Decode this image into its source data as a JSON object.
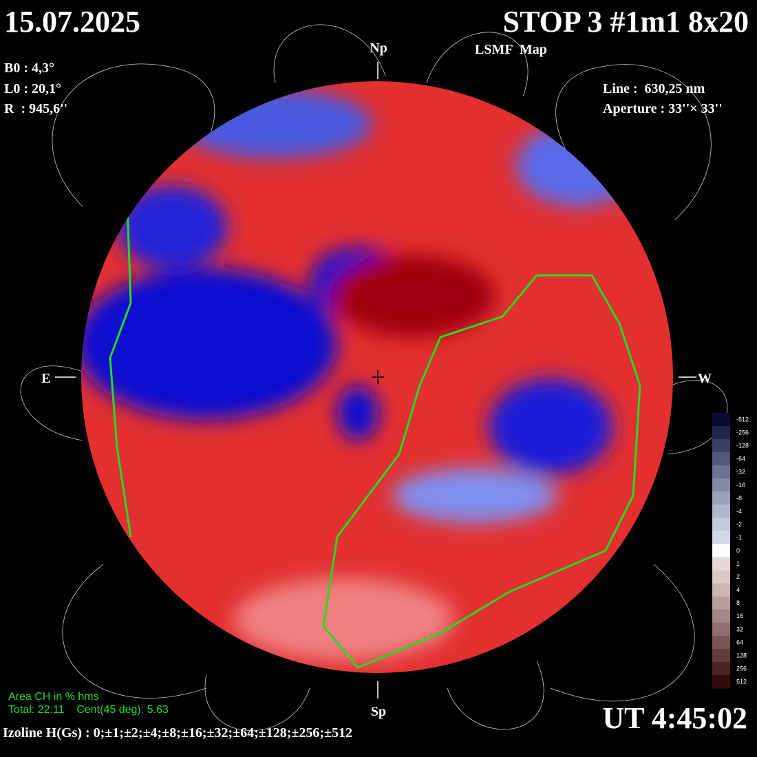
{
  "header": {
    "date": "15.07.2025",
    "title": "STOP 3 #1m1 8x20",
    "subtitle": "LSMF  Map"
  },
  "parameters": {
    "b0": "B0 : 4,3°",
    "l0": "L0 : 20,1°",
    "radius": "R  : 945,6''",
    "line": "Line :  630,25 nm",
    "aperture": "Aperture : 33''× 33''"
  },
  "directions": {
    "north": "Np",
    "south": "Sp",
    "east": "E",
    "west": "W"
  },
  "colorbar": {
    "labels": [
      -512,
      -256,
      -128,
      -64,
      -32,
      -16,
      -8,
      -4,
      -2,
      -1,
      0,
      1,
      2,
      4,
      8,
      16,
      32,
      64,
      128,
      256,
      512
    ]
  },
  "footer": {
    "area_title": "Area CH in % hms",
    "area_values": "Total: 22.11    Cent(45 deg): 5.63",
    "izoline": "Izoline H(Gs) : 0;±1;±2;±4;±8;±16;±32;±64;±128;±256;±512",
    "time": "UT 4:45:02"
  }
}
